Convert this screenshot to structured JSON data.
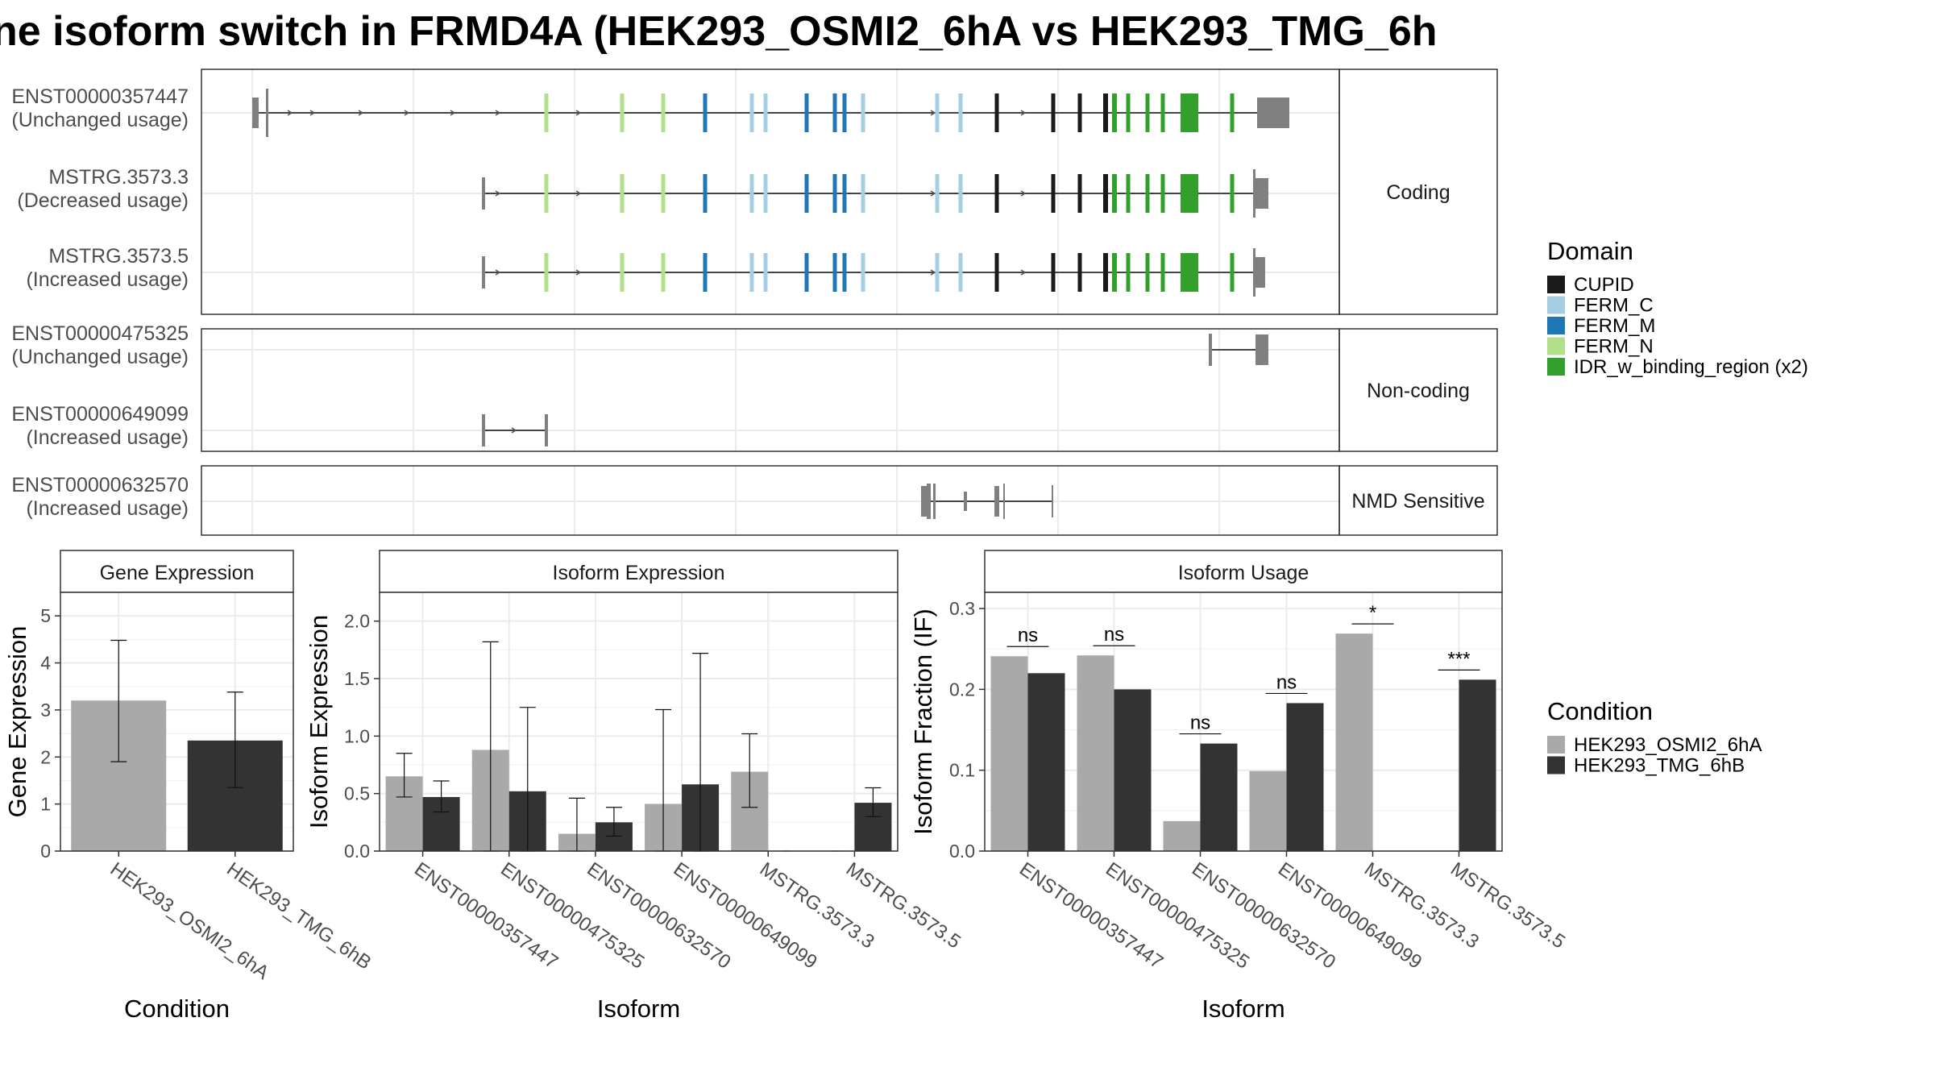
{
  "title": "ne isoform switch in FRMD4A (HEK293_OSMI2_6hA vs HEK293_TMG_6h",
  "colors": {
    "CUPID": "#1a1a1a",
    "FERM_C": "#a6cee3",
    "FERM_M": "#1f78b4",
    "FERM_N": "#b2df8a",
    "IDR_w_binding_region (x2)": "#33a02c",
    "exon": "#808080",
    "cond1": "#a9a9a9",
    "cond2": "#333333"
  },
  "structure": {
    "groups": [
      {
        "label": "Coding",
        "transcripts": [
          {
            "id": "ENST00000357447",
            "status": "(Unchanged usage)"
          },
          {
            "id": "MSTRG.3573.3",
            "status": "(Decreased usage)"
          },
          {
            "id": "MSTRG.3573.5",
            "status": "(Increased usage)"
          }
        ]
      },
      {
        "label": "Non-coding",
        "transcripts": [
          {
            "id": "ENST00000475325",
            "status": "(Unchanged usage)"
          },
          {
            "id": "ENST00000649099",
            "status": "(Increased usage)"
          }
        ]
      },
      {
        "label": "NMD Sensitive",
        "transcripts": [
          {
            "id": "ENST00000632570",
            "status": "(Increased usage)"
          }
        ]
      }
    ]
  },
  "legend_domain": {
    "title": "Domain",
    "items": [
      "CUPID",
      "FERM_C",
      "FERM_M",
      "FERM_N",
      "IDR_w_binding_region (x2)"
    ]
  },
  "legend_condition": {
    "title": "Condition",
    "items": [
      "HEK293_OSMI2_6hA",
      "HEK293_TMG_6hB"
    ]
  },
  "chart_data": [
    {
      "type": "bar",
      "title": "Gene Expression",
      "xlabel": "Condition",
      "ylabel": "Gene Expression",
      "ylim": [
        0,
        5.5
      ],
      "yticks": [
        0,
        1,
        2,
        3,
        4,
        5
      ],
      "categories": [
        "HEK293_OSMI2_6hA",
        "HEK293_TMG_6hB"
      ],
      "values": [
        3.2,
        2.35
      ],
      "err_low": [
        1.9,
        1.35
      ],
      "err_high": [
        4.48,
        3.38
      ]
    },
    {
      "type": "bar",
      "title": "Isoform Expression",
      "xlabel": "Isoform",
      "ylabel": "Isoform Expression",
      "ylim": [
        0,
        2.25
      ],
      "yticks": [
        0.0,
        0.5,
        1.0,
        1.5,
        2.0
      ],
      "categories": [
        "ENST00000357447",
        "ENST00000475325",
        "ENST00000632570",
        "ENST00000649099",
        "MSTRG.3573.3",
        "MSTRG.3573.5"
      ],
      "series": [
        {
          "name": "HEK293_OSMI2_6hA",
          "values": [
            0.65,
            0.88,
            0.15,
            0.41,
            0.69,
            0.0
          ],
          "err_low": [
            0.47,
            0.0,
            0.0,
            0.0,
            0.38,
            0.0
          ],
          "err_high": [
            0.85,
            1.82,
            0.46,
            1.23,
            1.02,
            0.0
          ]
        },
        {
          "name": "HEK293_TMG_6hB",
          "values": [
            0.47,
            0.52,
            0.25,
            0.58,
            0.0,
            0.42
          ],
          "err_low": [
            0.34,
            0.0,
            0.13,
            0.0,
            0.0,
            0.3
          ],
          "err_high": [
            0.61,
            1.25,
            0.38,
            1.72,
            0.0,
            0.55
          ]
        }
      ]
    },
    {
      "type": "bar",
      "title": "Isoform Usage",
      "xlabel": "Isoform",
      "ylabel": "Isoform Fraction (IF)",
      "ylim": [
        0,
        0.32
      ],
      "yticks": [
        0.0,
        0.1,
        0.2,
        0.3
      ],
      "categories": [
        "ENST00000357447",
        "ENST00000475325",
        "ENST00000632570",
        "ENST00000649099",
        "MSTRG.3573.3",
        "MSTRG.3573.5"
      ],
      "series": [
        {
          "name": "HEK293_OSMI2_6hA",
          "values": [
            0.241,
            0.242,
            0.037,
            0.099,
            0.269,
            0.0
          ]
        },
        {
          "name": "HEK293_TMG_6hB",
          "values": [
            0.22,
            0.2,
            0.133,
            0.183,
            0.0,
            0.212
          ]
        }
      ],
      "significance": [
        "ns",
        "ns",
        "ns",
        "ns",
        "*",
        "***"
      ]
    }
  ]
}
